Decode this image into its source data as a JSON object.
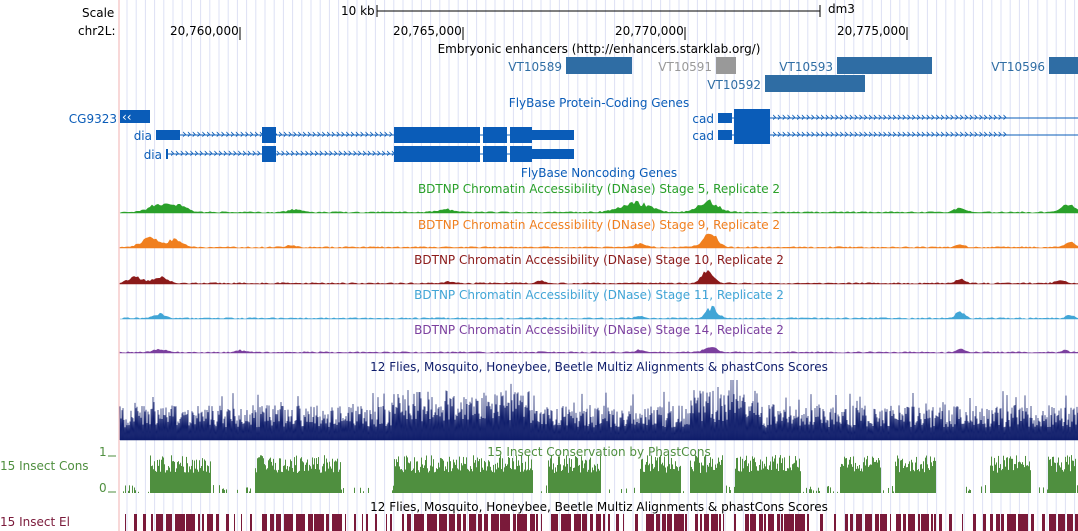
{
  "ruler": {
    "scale_label": "Scale",
    "chrom_label": "chr2L:",
    "scale_bar_label": "10 kb",
    "assembly": "dm3",
    "positions": [
      "20,760,000",
      "20,765,000",
      "20,770,000",
      "20,775,000"
    ]
  },
  "tracks": {
    "enhancers": {
      "title": "Embryonic enhancers (http://enhancers.starklab.org/)",
      "items": [
        "VT10589",
        "VT10591",
        "VT10593",
        "VT10592",
        "VT10596"
      ],
      "colors": {
        "dark": "#2f6da4",
        "grey": "#999999"
      }
    },
    "flybase_coding": {
      "title": "FlyBase Protein-Coding Genes",
      "genes": [
        "CG9323",
        "dia",
        "dia",
        "cad",
        "cad"
      ],
      "color": "#0a5cb8"
    },
    "flybase_noncoding": {
      "title": "FlyBase Noncoding Genes"
    },
    "dnase": [
      {
        "title": "BDTNP Chromatin Accessibility (DNase) Stage 5, Replicate 2",
        "color": "#2aa02a"
      },
      {
        "title": "BDTNP Chromatin Accessibility (DNase) Stage 9, Replicate 2",
        "color": "#f07f1e"
      },
      {
        "title": "BDTNP Chromatin Accessibility (DNase) Stage 10, Replicate 2",
        "color": "#8b1a1a"
      },
      {
        "title": "BDTNP Chromatin Accessibility (DNase) Stage 11, Replicate 2",
        "color": "#41a5d6"
      },
      {
        "title": "BDTNP Chromatin Accessibility (DNase) Stage 14, Replicate 2",
        "color": "#7b3f9e"
      }
    ],
    "multiz": {
      "title": "12 Flies, Mosquito, Honeybee, Beetle Multiz Alignments & phastCons Scores",
      "color": "#0f1d6b"
    },
    "phastcons": {
      "title": "15 Insect Conservation by PhastCons",
      "side_label": "15 Insect Cons",
      "axis_max": "1",
      "axis_min": "0",
      "color": "#4f8f3f"
    },
    "elements": {
      "title": "12 Flies, Mosquito, Honeybee, Beetle Multiz Alignments & phastCons Scores",
      "side_label": "15 Insect El",
      "color": "#7a1a3a"
    }
  }
}
